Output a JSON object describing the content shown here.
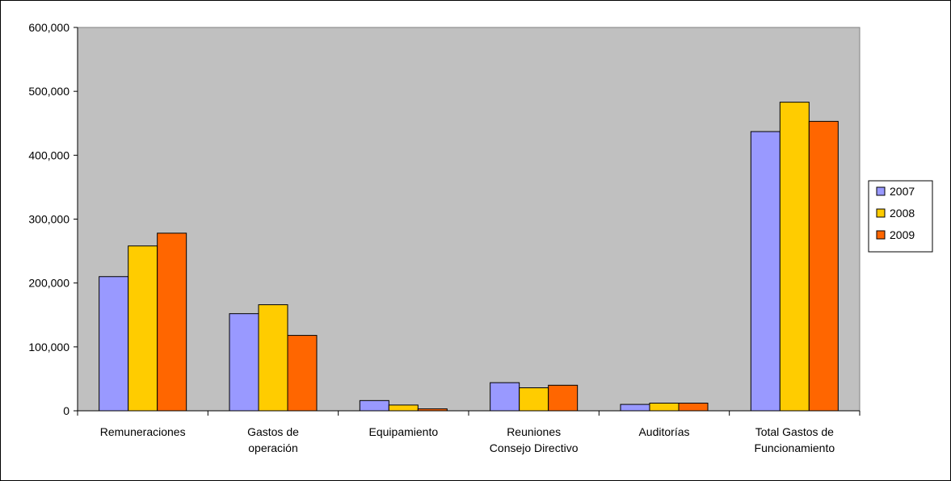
{
  "chart_data": {
    "type": "bar",
    "categories": [
      [
        "Remuneraciones"
      ],
      [
        "Gastos de",
        "operación"
      ],
      [
        "Equipamiento"
      ],
      [
        "Reuniones",
        "Consejo Directivo"
      ],
      [
        "Auditorías"
      ],
      [
        "Total Gastos de",
        "Funcionamiento"
      ]
    ],
    "series": [
      {
        "name": "2007",
        "color": "#9999FF",
        "values": [
          210000,
          152000,
          16000,
          44000,
          10000,
          437000
        ]
      },
      {
        "name": "2008",
        "color": "#FFCC00",
        "values": [
          258000,
          166000,
          9000,
          36000,
          12000,
          483000
        ]
      },
      {
        "name": "2009",
        "color": "#FF6600",
        "values": [
          278000,
          118000,
          3000,
          40000,
          12000,
          453000
        ]
      }
    ],
    "ylim": [
      0,
      600000
    ],
    "yticks": [
      0,
      100000,
      200000,
      300000,
      400000,
      500000,
      600000
    ],
    "ytick_labels": [
      "0",
      "100,000",
      "200,000",
      "300,000",
      "400,000",
      "500,000",
      "600,000"
    ],
    "plot_background": "#C0C0C0",
    "grid": false,
    "legend_position": "right"
  }
}
